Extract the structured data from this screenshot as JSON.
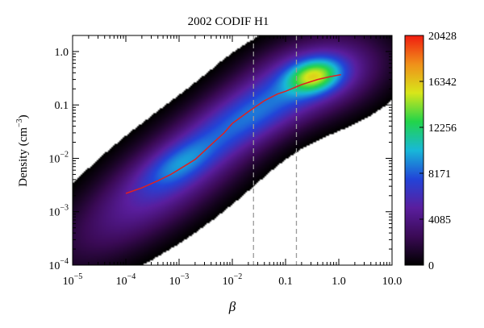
{
  "chart_data": {
    "type": "heatmap",
    "title": "2002 CODIF H1",
    "xlabel": "β",
    "ylabel_main": "Density (cm",
    "ylabel_sup": "−3",
    "ylabel_end": ")",
    "xscale": "log",
    "yscale": "log",
    "xlim": [
      1e-05,
      10
    ],
    "ylim": [
      0.0001,
      2
    ],
    "x_ticks": [
      {
        "value": 1e-05,
        "base": "10",
        "exp": "−5"
      },
      {
        "value": 0.0001,
        "base": "10",
        "exp": "−4"
      },
      {
        "value": 0.001,
        "base": "10",
        "exp": "−3"
      },
      {
        "value": 0.01,
        "base": "10",
        "exp": "−2"
      },
      {
        "value": 0.1,
        "label": "0.1"
      },
      {
        "value": 1,
        "label": "1.0"
      },
      {
        "value": 10,
        "label": "10.0"
      }
    ],
    "y_ticks": [
      {
        "value": 0.0001,
        "base": "10",
        "exp": "−4"
      },
      {
        "value": 0.001,
        "base": "10",
        "exp": "−3"
      },
      {
        "value": 0.01,
        "base": "10",
        "exp": "−2"
      },
      {
        "value": 0.1,
        "label": "0.1"
      },
      {
        "value": 1,
        "label": "1.0"
      }
    ],
    "colorbar": {
      "min": 0,
      "max": 20428,
      "ticks": [
        {
          "value": 0,
          "label": "0"
        },
        {
          "value": 4085,
          "label": "4085"
        },
        {
          "value": 8171,
          "label": "8171"
        },
        {
          "value": 12256,
          "label": "12256"
        },
        {
          "value": 16342,
          "label": "16342"
        },
        {
          "value": 20428,
          "label": "20428"
        }
      ],
      "colors": [
        "#000000",
        "#3a0a55",
        "#5a1e9e",
        "#2244d8",
        "#18b8d8",
        "#22d44a",
        "#d8e61a",
        "#f0901a",
        "#f01c10"
      ]
    },
    "vlines": [
      0.025,
      0.16
    ],
    "median_curve": {
      "x": [
        0.0001,
        0.0002,
        0.0004,
        0.0007,
        0.001,
        0.002,
        0.004,
        0.007,
        0.01,
        0.02,
        0.04,
        0.07,
        0.1,
        0.2,
        0.4,
        0.7,
        1.1
      ],
      "y": [
        0.0022,
        0.0028,
        0.0038,
        0.005,
        0.0062,
        0.0095,
        0.018,
        0.03,
        0.045,
        0.075,
        0.12,
        0.16,
        0.18,
        0.24,
        0.3,
        0.34,
        0.37
      ]
    },
    "blobs": [
      {
        "x": 0.0008,
        "y": 0.005,
        "sx": 1.4,
        "sy": 1.1,
        "rho": 0.8,
        "w": 1.0
      },
      {
        "x": 0.4,
        "y": 0.35,
        "sx": 0.9,
        "sy": 0.55,
        "rho": 0.3,
        "w": 1.0
      },
      {
        "x": 0.02,
        "y": 0.06,
        "sx": 0.7,
        "sy": 0.45,
        "rho": 0.5,
        "w": 0.6
      },
      {
        "x": 0.35,
        "y": 0.35,
        "sx": 0.35,
        "sy": 0.22,
        "rho": 0.2,
        "w": 1.2
      },
      {
        "x": 0.001,
        "y": 0.008,
        "sx": 0.5,
        "sy": 0.35,
        "rho": 0.6,
        "w": 0.5
      }
    ]
  }
}
